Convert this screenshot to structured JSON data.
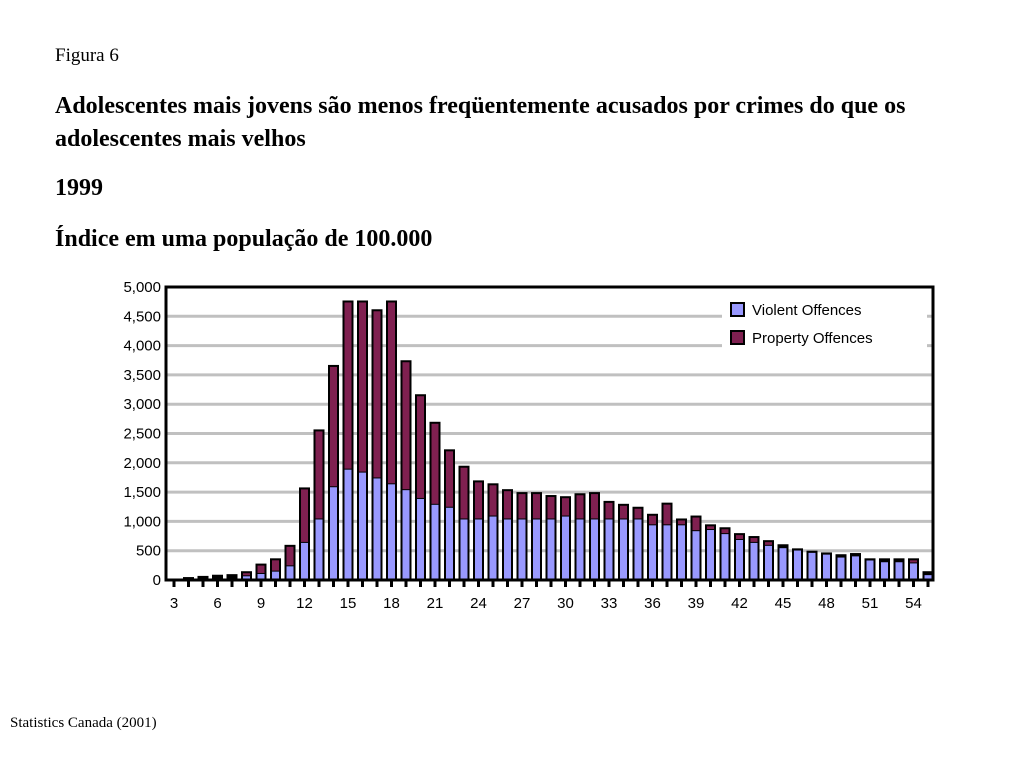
{
  "header": {
    "figure_label": "Figura 6",
    "title": "Adolescentes mais jovens são menos freqüentemente acusados por crimes do que os adolescentes mais velhos",
    "year": "1999",
    "subtitle": "Índice em uma população de 100.000"
  },
  "footer": {
    "source": "Statistics Canada (2001)"
  },
  "colors": {
    "violent": "#9999ff",
    "property": "#7f2050",
    "grid": "#c0c0c0",
    "frame": "#000000"
  },
  "chart_data": {
    "type": "bar",
    "stacked": true,
    "x": [
      3,
      4,
      5,
      6,
      7,
      8,
      9,
      10,
      11,
      12,
      13,
      14,
      15,
      16,
      17,
      18,
      19,
      20,
      21,
      22,
      23,
      24,
      25,
      26,
      27,
      28,
      29,
      30,
      31,
      32,
      33,
      34,
      35,
      36,
      37,
      38,
      39,
      40,
      41,
      42,
      43,
      44,
      45,
      46,
      47,
      48,
      49,
      50,
      51,
      52,
      53,
      54,
      55
    ],
    "x_tick_labels": [
      "3",
      "6",
      "9",
      "12",
      "15",
      "18",
      "21",
      "24",
      "27",
      "30",
      "33",
      "36",
      "39",
      "42",
      "45",
      "48",
      "51",
      "54"
    ],
    "y_tick_labels": [
      "0",
      "500",
      "1,000",
      "1,500",
      "2,000",
      "2,500",
      "3,000",
      "3,500",
      "4,000",
      "4,500",
      "5,000"
    ],
    "ylim": [
      0,
      5000
    ],
    "grid": true,
    "legend_position": "top-right",
    "series": [
      {
        "name": "Violent Offences",
        "values": [
          0,
          20,
          30,
          40,
          50,
          80,
          120,
          160,
          250,
          650,
          1050,
          1600,
          1900,
          1850,
          1750,
          1650,
          1550,
          1400,
          1300,
          1250,
          1050,
          1050,
          1100,
          1050,
          1050,
          1050,
          1050,
          1100,
          1050,
          1050,
          1050,
          1050,
          1050,
          950,
          950,
          950,
          850,
          870,
          800,
          700,
          650,
          600,
          560,
          520,
          480,
          450,
          400,
          420,
          350,
          320,
          320,
          300,
          100
        ]
      },
      {
        "name": "Property Offences",
        "values": [
          0,
          30,
          40,
          50,
          50,
          70,
          160,
          210,
          350,
          930,
          1520,
          2070,
          2870,
          2920,
          2870,
          3120,
          2200,
          1770,
          1400,
          980,
          900,
          650,
          550,
          500,
          450,
          450,
          400,
          330,
          430,
          450,
          300,
          250,
          200,
          180,
          370,
          100,
          250,
          80,
          100,
          100,
          100,
          80,
          50,
          20,
          20,
          20,
          40,
          40,
          20,
          50,
          50,
          70,
          50
        ]
      }
    ]
  }
}
